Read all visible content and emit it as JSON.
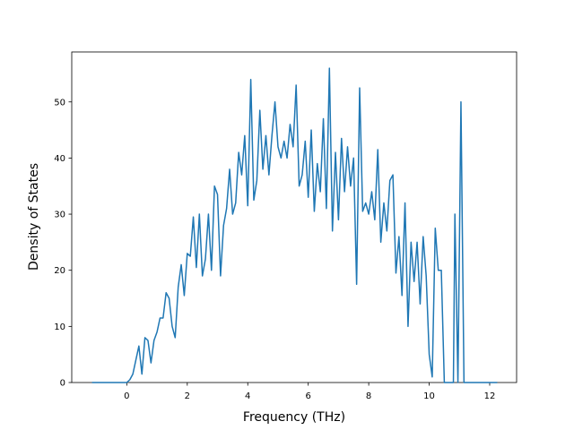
{
  "chart_data": {
    "type": "line",
    "x_label": "Frequency (THz)",
    "y_label": "Density of States",
    "x": [
      -1.15,
      0,
      0.1,
      0.2,
      0.3,
      0.4,
      0.5,
      0.6,
      0.7,
      0.8,
      0.9,
      1,
      1.1,
      1.2,
      1.3,
      1.4,
      1.5,
      1.6,
      1.7,
      1.8,
      1.9,
      2,
      2.1,
      2.2,
      2.3,
      2.4,
      2.5,
      2.6,
      2.7,
      2.8,
      2.9,
      3,
      3.1,
      3.2,
      3.3,
      3.4,
      3.5,
      3.6,
      3.7,
      3.8,
      3.9,
      4,
      4.1,
      4.2,
      4.3,
      4.4,
      4.5,
      4.6,
      4.7,
      4.8,
      4.9,
      5,
      5.1,
      5.2,
      5.3,
      5.4,
      5.5,
      5.6,
      5.7,
      5.8,
      5.9,
      6,
      6.1,
      6.2,
      6.3,
      6.4,
      6.5,
      6.6,
      6.7,
      6.8,
      6.9,
      7,
      7.1,
      7.2,
      7.3,
      7.4,
      7.5,
      7.6,
      7.7,
      7.8,
      7.9,
      8,
      8.1,
      8.2,
      8.3,
      8.4,
      8.5,
      8.6,
      8.7,
      8.8,
      8.9,
      9,
      9.1,
      9.2,
      9.3,
      9.4,
      9.5,
      9.6,
      9.7,
      9.8,
      9.9,
      10,
      10.1,
      10.2,
      10.3,
      10.4,
      10.5,
      10.8,
      10.85,
      10.95,
      11.05,
      11.15,
      12.25
    ],
    "series": [
      {
        "color": "#1f77b4",
        "values": [
          0,
          0,
          0.5,
          1.5,
          4,
          6.5,
          1.5,
          8,
          7.5,
          3.5,
          7.5,
          9,
          11.5,
          11.5,
          16,
          15,
          10,
          8,
          17,
          21,
          15.5,
          23,
          22.5,
          29.5,
          20.5,
          30,
          19,
          22,
          30,
          20,
          35,
          33.5,
          19,
          28,
          31,
          38,
          30,
          32,
          41,
          37,
          44,
          31.5,
          54,
          32.5,
          36,
          48.5,
          38,
          44,
          37,
          44,
          50,
          42,
          40,
          43,
          40,
          46,
          42,
          53,
          35,
          37,
          43,
          33,
          45,
          30.5,
          39,
          34,
          47,
          31,
          56,
          27,
          41,
          29,
          43.5,
          34,
          42,
          35,
          40,
          17.5,
          52.5,
          30.5,
          32,
          30,
          34,
          29,
          41.5,
          25,
          32,
          27,
          36,
          37,
          19.5,
          26,
          15.5,
          32,
          10,
          25,
          18,
          25,
          14,
          26,
          19,
          5,
          1,
          27.5,
          20,
          20,
          0,
          0,
          30,
          0,
          50,
          0,
          0
        ]
      }
    ],
    "xlim": [
      -1.82,
      12.89
    ],
    "ylim": [
      0,
      58.9
    ],
    "xticks": [
      0,
      2,
      4,
      6,
      8,
      10,
      12
    ],
    "yticks": [
      0,
      10,
      20,
      30,
      40,
      50
    ]
  }
}
